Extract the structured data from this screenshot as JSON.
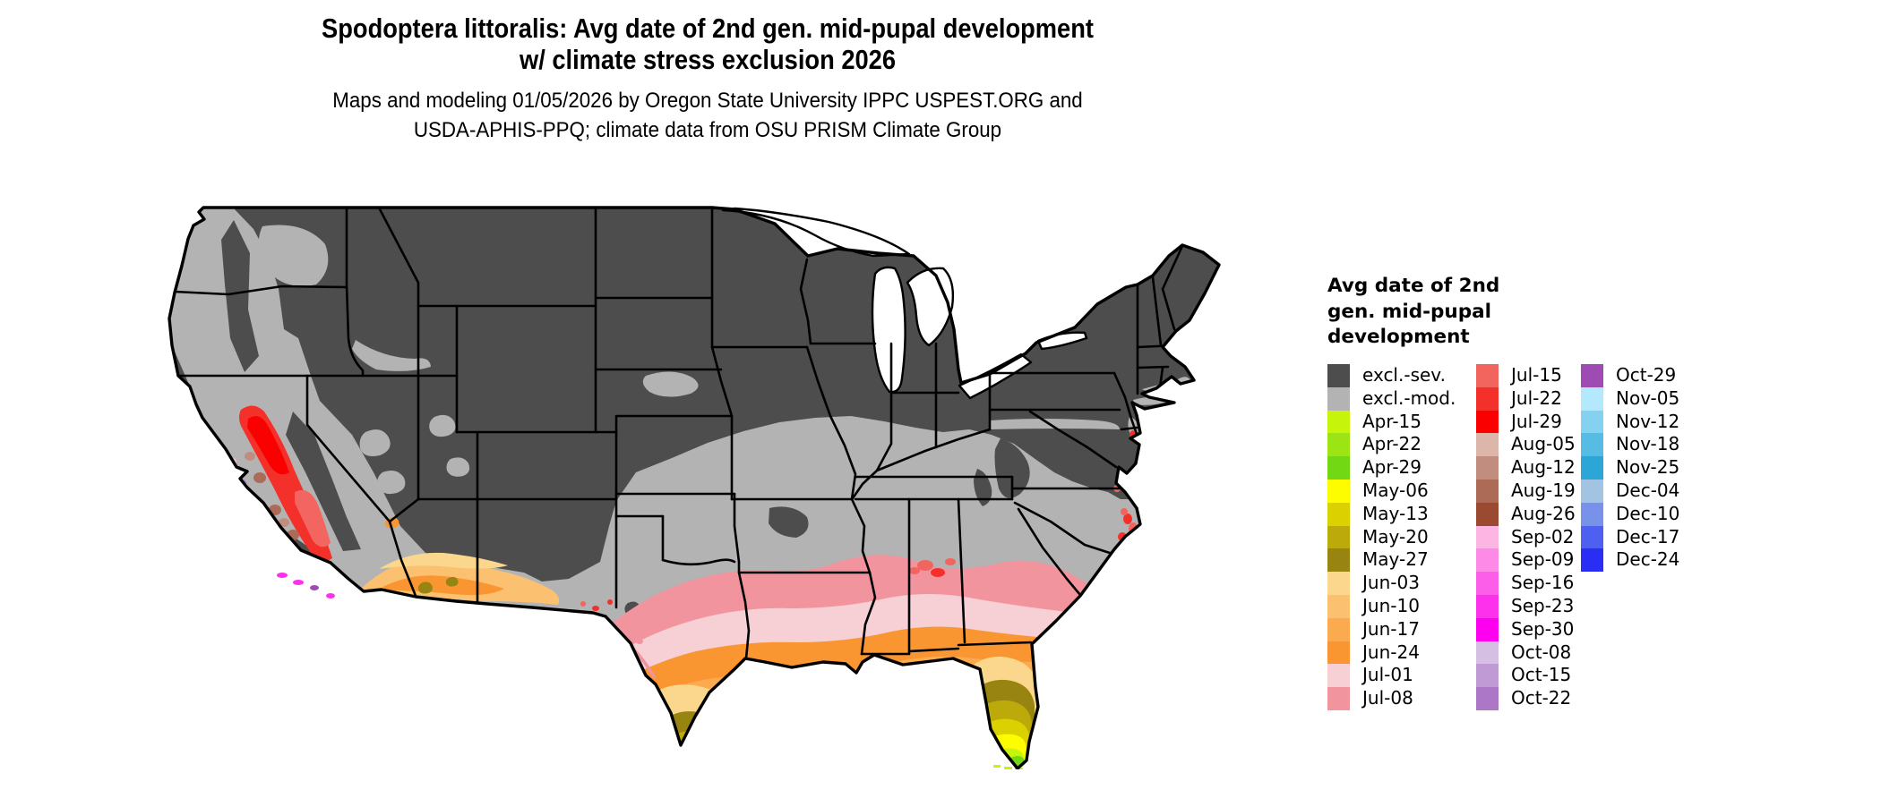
{
  "title": {
    "line1": "Spodoptera littoralis: Avg date of 2nd gen. mid-pupal development",
    "line2": "w/ climate stress exclusion 2026"
  },
  "subtitle": {
    "line1": "Maps and modeling 01/05/2026 by Oregon State University IPPC USPEST.ORG and",
    "line2": "USDA-APHIS-PPQ; climate data from OSU PRISM Climate Group"
  },
  "map": {
    "region": "Continental United States",
    "excluded_severe_color": "#4d4d4d",
    "excluded_moderate_color": "#b3b3b3",
    "water_color": "#ffffff",
    "border_color": "#000000"
  },
  "legend": {
    "title_line1": "Avg date of 2nd",
    "title_line2": "gen. mid-pupal",
    "title_line3": "development",
    "columns": [
      {
        "entries": [
          {
            "label": "excl.-sev.",
            "color": "#4d4d4d"
          },
          {
            "label": "excl.-mod.",
            "color": "#b3b3b3"
          },
          {
            "label": "Apr-15",
            "color": "#c6f40a"
          },
          {
            "label": "Apr-22",
            "color": "#9ce414"
          },
          {
            "label": "Apr-29",
            "color": "#72d813"
          },
          {
            "label": "May-06",
            "color": "#fdfd00"
          },
          {
            "label": "May-13",
            "color": "#dcd100"
          },
          {
            "label": "May-20",
            "color": "#bcaa0a"
          },
          {
            "label": "May-27",
            "color": "#988410"
          },
          {
            "label": "Jun-03",
            "color": "#fbd78d"
          },
          {
            "label": "Jun-10",
            "color": "#fbc170"
          },
          {
            "label": "Jun-17",
            "color": "#fbaa50"
          },
          {
            "label": "Jun-24",
            "color": "#fa9632"
          },
          {
            "label": "Jul-01",
            "color": "#f6d0d4"
          },
          {
            "label": "Jul-08",
            "color": "#f2949e"
          }
        ]
      },
      {
        "entries": [
          {
            "label": "Jul-15",
            "color": "#f2655f"
          },
          {
            "label": "Jul-22",
            "color": "#f3302a"
          },
          {
            "label": "Jul-29",
            "color": "#fb0000"
          },
          {
            "label": "Aug-05",
            "color": "#ddb6ab"
          },
          {
            "label": "Aug-12",
            "color": "#c08d7e"
          },
          {
            "label": "Aug-19",
            "color": "#ab6b57"
          },
          {
            "label": "Aug-26",
            "color": "#9b4a32"
          },
          {
            "label": "Sep-02",
            "color": "#fdb5e3"
          },
          {
            "label": "Sep-09",
            "color": "#fd8ae6"
          },
          {
            "label": "Sep-16",
            "color": "#fd5ee9"
          },
          {
            "label": "Sep-23",
            "color": "#fd30ec"
          },
          {
            "label": "Sep-30",
            "color": "#fd00ef"
          },
          {
            "label": "Oct-08",
            "color": "#d5bfe3"
          },
          {
            "label": "Oct-15",
            "color": "#c09ad4"
          },
          {
            "label": "Oct-22",
            "color": "#ab77c6"
          }
        ]
      },
      {
        "entries": [
          {
            "label": "Oct-29",
            "color": "#9f4bb4"
          },
          {
            "label": "Nov-05",
            "color": "#b3e8fd"
          },
          {
            "label": "Nov-12",
            "color": "#85d2f0"
          },
          {
            "label": "Nov-18",
            "color": "#57bce3"
          },
          {
            "label": "Nov-25",
            "color": "#2ca6d6"
          },
          {
            "label": "Dec-04",
            "color": "#a3c3e3"
          },
          {
            "label": "Dec-10",
            "color": "#7891e9"
          },
          {
            "label": "Dec-17",
            "color": "#4d60ef"
          },
          {
            "label": "Dec-24",
            "color": "#2a2ef5"
          }
        ]
      }
    ]
  }
}
